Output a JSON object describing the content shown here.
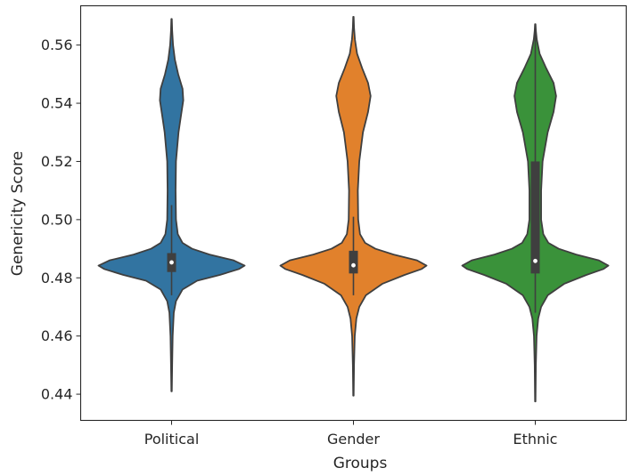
{
  "chart_data": {
    "type": "violin",
    "title": "",
    "xlabel": "Groups",
    "ylabel": "Genericity Score",
    "categories": [
      "Political",
      "Gender",
      "Ethnic"
    ],
    "ylim": [
      0.431,
      0.5735
    ],
    "yticks": [
      0.44,
      0.46,
      0.48,
      0.5,
      0.52,
      0.54,
      0.56
    ],
    "ytick_labels": [
      "0.44",
      "0.46",
      "0.48",
      "0.50",
      "0.52",
      "0.54",
      "0.56"
    ],
    "grid": false,
    "legend": "none",
    "groups": [
      {
        "category": "Political",
        "color": "#3274a1",
        "min": 0.441,
        "max": 0.569,
        "q1": 0.482,
        "median": 0.4853,
        "q3": 0.4885,
        "whisker_low": 0.474,
        "whisker_high": 0.505,
        "density": [
          [
            0.441,
            0.003
          ],
          [
            0.45,
            0.008
          ],
          [
            0.46,
            0.015
          ],
          [
            0.468,
            0.03
          ],
          [
            0.472,
            0.06
          ],
          [
            0.476,
            0.15
          ],
          [
            0.479,
            0.35
          ],
          [
            0.481,
            0.66
          ],
          [
            0.483,
            0.92
          ],
          [
            0.4842,
            1.0
          ],
          [
            0.486,
            0.85
          ],
          [
            0.488,
            0.52
          ],
          [
            0.49,
            0.28
          ],
          [
            0.492,
            0.15
          ],
          [
            0.495,
            0.085
          ],
          [
            0.5,
            0.06
          ],
          [
            0.51,
            0.055
          ],
          [
            0.52,
            0.06
          ],
          [
            0.53,
            0.095
          ],
          [
            0.536,
            0.13
          ],
          [
            0.541,
            0.16
          ],
          [
            0.545,
            0.15
          ],
          [
            0.55,
            0.09
          ],
          [
            0.555,
            0.045
          ],
          [
            0.56,
            0.02
          ],
          [
            0.565,
            0.008
          ],
          [
            0.569,
            0.003
          ]
        ]
      },
      {
        "category": "Gender",
        "color": "#e1812c",
        "min": 0.4395,
        "max": 0.5697,
        "q1": 0.4815,
        "median": 0.4843,
        "q3": 0.4893,
        "whisker_low": 0.474,
        "whisker_high": 0.501,
        "density": [
          [
            0.4395,
            0.003
          ],
          [
            0.45,
            0.008
          ],
          [
            0.46,
            0.018
          ],
          [
            0.466,
            0.04
          ],
          [
            0.47,
            0.08
          ],
          [
            0.474,
            0.17
          ],
          [
            0.478,
            0.4
          ],
          [
            0.481,
            0.7
          ],
          [
            0.483,
            0.93
          ],
          [
            0.4842,
            1.0
          ],
          [
            0.486,
            0.87
          ],
          [
            0.488,
            0.55
          ],
          [
            0.49,
            0.3
          ],
          [
            0.492,
            0.16
          ],
          [
            0.495,
            0.09
          ],
          [
            0.5,
            0.065
          ],
          [
            0.51,
            0.06
          ],
          [
            0.52,
            0.08
          ],
          [
            0.53,
            0.13
          ],
          [
            0.537,
            0.2
          ],
          [
            0.5425,
            0.235
          ],
          [
            0.547,
            0.2
          ],
          [
            0.552,
            0.12
          ],
          [
            0.557,
            0.05
          ],
          [
            0.562,
            0.02
          ],
          [
            0.566,
            0.008
          ],
          [
            0.5697,
            0.003
          ]
        ]
      },
      {
        "category": "Ethnic",
        "color": "#3a923a",
        "min": 0.4375,
        "max": 0.5672,
        "q1": 0.4815,
        "median": 0.4858,
        "q3": 0.52,
        "whisker_low": 0.468,
        "whisker_high": 0.567,
        "density": [
          [
            0.4375,
            0.003
          ],
          [
            0.45,
            0.008
          ],
          [
            0.46,
            0.018
          ],
          [
            0.466,
            0.04
          ],
          [
            0.47,
            0.08
          ],
          [
            0.474,
            0.17
          ],
          [
            0.478,
            0.4
          ],
          [
            0.481,
            0.7
          ],
          [
            0.483,
            0.93
          ],
          [
            0.4842,
            1.0
          ],
          [
            0.486,
            0.87
          ],
          [
            0.488,
            0.56
          ],
          [
            0.49,
            0.32
          ],
          [
            0.492,
            0.18
          ],
          [
            0.495,
            0.11
          ],
          [
            0.5,
            0.08
          ],
          [
            0.51,
            0.08
          ],
          [
            0.52,
            0.1
          ],
          [
            0.53,
            0.17
          ],
          [
            0.537,
            0.25
          ],
          [
            0.5425,
            0.285
          ],
          [
            0.547,
            0.25
          ],
          [
            0.552,
            0.15
          ],
          [
            0.557,
            0.06
          ],
          [
            0.562,
            0.02
          ],
          [
            0.565,
            0.008
          ],
          [
            0.5672,
            0.003
          ]
        ]
      }
    ]
  }
}
